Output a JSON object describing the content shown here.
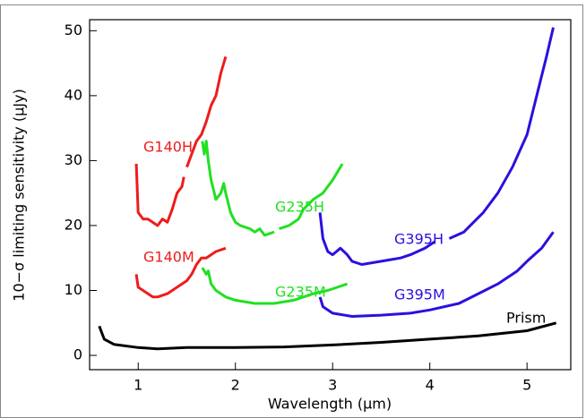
{
  "chart_data": {
    "type": "line",
    "xlabel": "Wavelength (μm)",
    "ylabel": "10−σ limiting sensitivity (μJy)",
    "xlim": [
      0.5,
      5.45
    ],
    "xticks": [
      1,
      2,
      3,
      4,
      5
    ],
    "ylim": [
      -2.2,
      51.7
    ],
    "yticks": [
      0,
      10,
      20,
      30,
      40,
      50
    ],
    "series": [
      {
        "name": "G140H",
        "color": "#ee1c1c",
        "x": [
          0.98,
          1.0,
          1.05,
          1.1,
          1.2,
          1.25,
          1.3,
          1.35,
          1.4,
          1.45,
          1.47,
          1.48,
          1.5,
          1.55,
          1.6,
          1.65,
          1.7,
          1.75,
          1.8,
          1.85,
          1.9
        ],
        "values": [
          29.5,
          22,
          21,
          21,
          20,
          21,
          20.5,
          22.5,
          25,
          26,
          27.5,
          null,
          29,
          31,
          33,
          34,
          36,
          38.5,
          40,
          43.5,
          46
        ]
      },
      {
        "name": "G140M",
        "color": "#ee1c1c",
        "x": [
          0.98,
          1.0,
          1.05,
          1.15,
          1.2,
          1.3,
          1.4,
          1.5,
          1.55,
          1.6,
          1.65,
          1.7,
          1.8,
          1.9
        ],
        "values": [
          12.5,
          10.5,
          10,
          9,
          9,
          9.5,
          10.5,
          11.5,
          12.5,
          14,
          15,
          15,
          16,
          16.5
        ]
      },
      {
        "name": "G235H",
        "color": "#22e022",
        "x": [
          1.66,
          1.68,
          1.7,
          1.72,
          1.75,
          1.8,
          1.85,
          1.88,
          1.9,
          1.95,
          2.0,
          2.05,
          2.15,
          2.2,
          2.25,
          2.3,
          2.4,
          2.42,
          2.45,
          2.55,
          2.65,
          2.7,
          2.8,
          2.9,
          3.0,
          3.1
        ],
        "values": [
          33,
          31,
          33,
          30,
          27,
          24,
          25,
          26.5,
          25,
          22,
          20.5,
          20,
          19.5,
          19,
          19.5,
          18.5,
          19,
          null,
          19.5,
          20,
          21,
          22.5,
          24,
          25,
          27,
          29.5
        ]
      },
      {
        "name": "G235M",
        "color": "#22e022",
        "x": [
          1.66,
          1.7,
          1.72,
          1.75,
          1.8,
          1.9,
          2.0,
          2.2,
          2.4,
          2.6,
          2.7,
          2.8,
          2.95,
          3.15
        ],
        "values": [
          13.5,
          12.5,
          13,
          11,
          10,
          9,
          8.5,
          8,
          8,
          8.5,
          9,
          9.5,
          10,
          11
        ]
      },
      {
        "name": "G395H",
        "color": "#2a10e0",
        "x": [
          2.87,
          2.9,
          2.95,
          3.0,
          3.08,
          3.15,
          3.2,
          3.3,
          3.5,
          3.7,
          3.8,
          3.95,
          4.05,
          4.12,
          4.2,
          4.35,
          4.45,
          4.55,
          4.7,
          4.85,
          5.0,
          5.1,
          5.2,
          5.27
        ],
        "values": [
          22,
          18,
          16,
          15.5,
          16.5,
          15.5,
          14.5,
          14,
          14.5,
          15,
          15.5,
          16.5,
          17.5,
          null,
          18,
          19,
          20.5,
          22,
          25,
          29,
          34,
          40,
          46,
          50.5
        ]
      },
      {
        "name": "G395M",
        "color": "#2a10e0",
        "x": [
          2.87,
          2.9,
          3.0,
          3.2,
          3.5,
          3.8,
          4.0,
          4.3,
          4.5,
          4.7,
          4.9,
          5.0,
          5.15,
          5.27
        ],
        "values": [
          9,
          7.5,
          6.5,
          6,
          6.2,
          6.5,
          7,
          8,
          9.5,
          11,
          13,
          14.5,
          16.5,
          19
        ]
      },
      {
        "name": "Prism",
        "color": "#000000",
        "x": [
          0.6,
          0.65,
          0.75,
          1.0,
          1.2,
          1.5,
          2.0,
          2.5,
          3.0,
          3.5,
          4.0,
          4.5,
          5.0,
          5.3
        ],
        "values": [
          4.5,
          2.5,
          1.7,
          1.2,
          1.0,
          1.2,
          1.2,
          1.3,
          1.6,
          2.0,
          2.5,
          3.0,
          3.8,
          5.0
        ]
      }
    ]
  }
}
